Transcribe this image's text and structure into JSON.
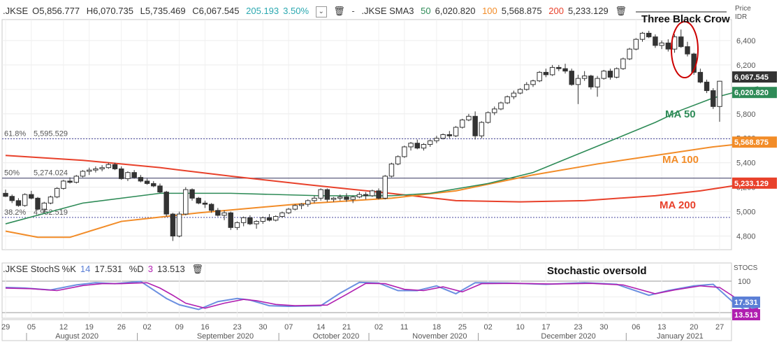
{
  "header": {
    "symbol": ".JKSE",
    "open_label": "O",
    "open": "5,856.777",
    "high_label": "H",
    "high": "6,070.735",
    "low_label": "L",
    "low": "5,735.469",
    "close_label": "C",
    "close": "6,067.545",
    "change": "205.193",
    "change_pct": "3.50%",
    "sma_label": ".JKSE SMA3",
    "sma50_label": "50",
    "sma50_value": "6,020.820",
    "sma100_label": "100",
    "sma100_value": "5,568.875",
    "sma200_label": "200",
    "sma200_value": "5,233.129"
  },
  "price_axis_title": "Price",
  "price_axis_unit": "IDR",
  "stoch_header": {
    "symbol": ".JKSE StochS",
    "k_label": "%K",
    "k_period": "14",
    "k_value": "17.531",
    "d_label": "%D",
    "d_period": "3",
    "d_value": "13.513"
  },
  "stoch_axis_title": "STOCS",
  "annotations": {
    "three_black_crow": "Three Black Crow",
    "stochastic_oversold": "Stochastic oversold",
    "ma50": "MA 50",
    "ma100": "MA 100",
    "ma200": "MA 200"
  },
  "fib_levels": [
    {
      "label": "61.8%",
      "value": "5,595.529",
      "price": 5595.529
    },
    {
      "label": "50%",
      "value": "5,274.024",
      "price": 5274.024
    },
    {
      "label": "38.2%",
      "value": "4,952.519",
      "price": 4952.519
    }
  ],
  "price_badges": [
    {
      "text": "6,067.545",
      "price": 6067.545,
      "color": "#333333"
    },
    {
      "text": "6,020.820",
      "price": 6020.82,
      "color": "#2e8b57"
    },
    {
      "text": "5,568.875",
      "price": 5568.875,
      "color": "#f28c28"
    },
    {
      "text": "5,233.129",
      "price": 5233.129,
      "color": "#e8412b"
    }
  ],
  "stoch_badges": [
    {
      "text": "17.531",
      "value": 17.531,
      "color": "#5b7fd6"
    },
    {
      "text": "13.513",
      "value": 13.513,
      "color": "#b01fb0"
    }
  ],
  "colors": {
    "up": "#ffffff",
    "down": "#333333",
    "ma50": "#2e8b57",
    "ma100": "#f28c28",
    "ma200": "#e8412b",
    "stochK": "#6b8fe0",
    "stochD": "#b01fb0",
    "annot_circle": "#cc0000",
    "change": "#2aa8b0"
  },
  "chart_data": {
    "type": "candlestick",
    "yaxis": {
      "ticks": [
        4800,
        5000,
        5200,
        5400,
        5600,
        5800,
        6000,
        6200,
        6400
      ],
      "tick_labels": [
        "4,800",
        "5,000",
        "5,200",
        "5,400",
        "5,600",
        "5,800",
        "6,000",
        "6,200",
        "6,400"
      ],
      "ylim": [
        4700,
        6560
      ]
    },
    "xaxis_days": [
      "29",
      "05",
      "12",
      "19",
      "26",
      "02",
      "09",
      "16",
      "23",
      "30",
      "07",
      "14",
      "21",
      "02",
      "11",
      "18",
      "25",
      "02",
      "10",
      "17",
      "23",
      "30",
      "06",
      "13",
      "20",
      "27"
    ],
    "xaxis_months": [
      "August 2020",
      "September 2020",
      "October 2020",
      "November 2020",
      "December 2020",
      "January 2021"
    ],
    "candles": [
      [
        5150,
        5180,
        5120,
        5125
      ],
      [
        5125,
        5140,
        5070,
        5090
      ],
      [
        5090,
        5110,
        5040,
        5050
      ],
      [
        5050,
        5150,
        5040,
        5140
      ],
      [
        5140,
        5170,
        5100,
        5110
      ],
      [
        5110,
        5120,
        5010,
        5020
      ],
      [
        5020,
        5080,
        4990,
        5070
      ],
      [
        5070,
        5130,
        5060,
        5120
      ],
      [
        5120,
        5200,
        5110,
        5190
      ],
      [
        5190,
        5260,
        5180,
        5250
      ],
      [
        5250,
        5280,
        5230,
        5240
      ],
      [
        5240,
        5300,
        5230,
        5290
      ],
      [
        5290,
        5340,
        5280,
        5330
      ],
      [
        5330,
        5360,
        5300,
        5340
      ],
      [
        5340,
        5370,
        5320,
        5350
      ],
      [
        5350,
        5380,
        5330,
        5360
      ],
      [
        5360,
        5400,
        5350,
        5385
      ],
      [
        5385,
        5400,
        5340,
        5350
      ],
      [
        5350,
        5370,
        5260,
        5270
      ],
      [
        5270,
        5330,
        5250,
        5320
      ],
      [
        5320,
        5340,
        5270,
        5280
      ],
      [
        5280,
        5300,
        5240,
        5250
      ],
      [
        5250,
        5270,
        5220,
        5230
      ],
      [
        5230,
        5250,
        5200,
        5210
      ],
      [
        5210,
        5230,
        5150,
        5160
      ],
      [
        5160,
        5170,
        4960,
        4980
      ],
      [
        4980,
        4990,
        4760,
        4800
      ],
      [
        4800,
        5000,
        4790,
        4980
      ],
      [
        4980,
        5200,
        4970,
        5180
      ],
      [
        5180,
        5190,
        5090,
        5110
      ],
      [
        5110,
        5120,
        5060,
        5070
      ],
      [
        5070,
        5090,
        5030,
        5060
      ],
      [
        5060,
        5070,
        4990,
        5010
      ],
      [
        5010,
        5030,
        4960,
        4970
      ],
      [
        4970,
        5010,
        4930,
        4990
      ],
      [
        4990,
        5000,
        4850,
        4870
      ],
      [
        4870,
        4920,
        4850,
        4910
      ],
      [
        4910,
        4960,
        4880,
        4950
      ],
      [
        4950,
        4970,
        4890,
        4900
      ],
      [
        4900,
        4930,
        4860,
        4920
      ],
      [
        4920,
        4960,
        4900,
        4950
      ],
      [
        4950,
        4980,
        4920,
        4930
      ],
      [
        4930,
        4970,
        4920,
        4960
      ],
      [
        4960,
        5000,
        4950,
        4990
      ],
      [
        4990,
        5030,
        4980,
        5020
      ],
      [
        5020,
        5060,
        5010,
        5050
      ],
      [
        5050,
        5070,
        5020,
        5060
      ],
      [
        5060,
        5100,
        5040,
        5090
      ],
      [
        5090,
        5130,
        5070,
        5110
      ],
      [
        5110,
        5190,
        5090,
        5180
      ],
      [
        5180,
        5190,
        5080,
        5100
      ],
      [
        5100,
        5120,
        5080,
        5110
      ],
      [
        5110,
        5140,
        5090,
        5120
      ],
      [
        5120,
        5150,
        5080,
        5100
      ],
      [
        5100,
        5130,
        5070,
        5120
      ],
      [
        5120,
        5160,
        5110,
        5140
      ],
      [
        5140,
        5160,
        5100,
        5130
      ],
      [
        5130,
        5180,
        5120,
        5170
      ],
      [
        5170,
        5190,
        5100,
        5110
      ],
      [
        5110,
        5300,
        5100,
        5290
      ],
      [
        5290,
        5400,
        5280,
        5390
      ],
      [
        5390,
        5460,
        5380,
        5450
      ],
      [
        5450,
        5540,
        5440,
        5530
      ],
      [
        5530,
        5570,
        5500,
        5560
      ],
      [
        5560,
        5590,
        5510,
        5520
      ],
      [
        5520,
        5560,
        5500,
        5550
      ],
      [
        5550,
        5590,
        5530,
        5580
      ],
      [
        5580,
        5620,
        5560,
        5600
      ],
      [
        5600,
        5640,
        5590,
        5630
      ],
      [
        5630,
        5660,
        5600,
        5620
      ],
      [
        5620,
        5700,
        5610,
        5690
      ],
      [
        5690,
        5760,
        5680,
        5750
      ],
      [
        5750,
        5800,
        5740,
        5780
      ],
      [
        5780,
        5820,
        5590,
        5620
      ],
      [
        5620,
        5740,
        5600,
        5730
      ],
      [
        5730,
        5820,
        5720,
        5810
      ],
      [
        5810,
        5860,
        5790,
        5840
      ],
      [
        5840,
        5900,
        5830,
        5890
      ],
      [
        5890,
        5950,
        5880,
        5940
      ],
      [
        5940,
        5990,
        5920,
        5970
      ],
      [
        5970,
        6010,
        5960,
        6000
      ],
      [
        6000,
        6060,
        5990,
        6040
      ],
      [
        6040,
        6080,
        6020,
        6070
      ],
      [
        6070,
        6150,
        6060,
        6140
      ],
      [
        6140,
        6170,
        6100,
        6120
      ],
      [
        6120,
        6200,
        6110,
        6180
      ],
      [
        6180,
        6200,
        6150,
        6170
      ],
      [
        6170,
        6210,
        6130,
        6150
      ],
      [
        6150,
        6170,
        6030,
        6040
      ],
      [
        6040,
        6120,
        5880,
        6090
      ],
      [
        6090,
        6150,
        6070,
        6110
      ],
      [
        6110,
        6120,
        6000,
        6020
      ],
      [
        6020,
        6110,
        5940,
        6090
      ],
      [
        6090,
        6160,
        6080,
        6150
      ],
      [
        6150,
        6170,
        6080,
        6100
      ],
      [
        6100,
        6180,
        6090,
        6170
      ],
      [
        6170,
        6260,
        6160,
        6250
      ],
      [
        6250,
        6340,
        6240,
        6330
      ],
      [
        6330,
        6420,
        6320,
        6410
      ],
      [
        6410,
        6470,
        6390,
        6460
      ],
      [
        6460,
        6480,
        6420,
        6430
      ],
      [
        6430,
        6450,
        6340,
        6360
      ],
      [
        6360,
        6400,
        6330,
        6380
      ],
      [
        6380,
        6410,
        6310,
        6330
      ],
      [
        6330,
        6450,
        6300,
        6430
      ],
      [
        6430,
        6490,
        6340,
        6350
      ],
      [
        6350,
        6390,
        6270,
        6290
      ],
      [
        6290,
        6300,
        6120,
        6140
      ],
      [
        6140,
        6170,
        6050,
        6060
      ],
      [
        6060,
        6080,
        5970,
        5990
      ],
      [
        5990,
        6010,
        5840,
        5860
      ],
      [
        5860,
        6070,
        5735,
        6067
      ]
    ],
    "sma50": [
      [
        0,
        4900
      ],
      [
        12,
        5070
      ],
      [
        24,
        5150
      ],
      [
        35,
        5150
      ],
      [
        49,
        5130
      ],
      [
        60,
        5130
      ],
      [
        66,
        5150
      ],
      [
        75,
        5230
      ],
      [
        82,
        5320
      ],
      [
        88,
        5450
      ],
      [
        95,
        5600
      ],
      [
        101,
        5730
      ],
      [
        105,
        5830
      ],
      [
        110,
        5930
      ],
      [
        115,
        6000
      ],
      [
        117,
        6021
      ]
    ],
    "sma100": [
      [
        0,
        4840
      ],
      [
        5,
        4790
      ],
      [
        10,
        4790
      ],
      [
        18,
        4920
      ],
      [
        30,
        4990
      ],
      [
        45,
        5060
      ],
      [
        60,
        5110
      ],
      [
        70,
        5170
      ],
      [
        82,
        5300
      ],
      [
        92,
        5390
      ],
      [
        101,
        5460
      ],
      [
        110,
        5530
      ],
      [
        117,
        5569
      ]
    ],
    "sma200": [
      [
        0,
        5460
      ],
      [
        12,
        5420
      ],
      [
        24,
        5360
      ],
      [
        35,
        5290
      ],
      [
        47,
        5220
      ],
      [
        58,
        5160
      ],
      [
        70,
        5090
      ],
      [
        80,
        5080
      ],
      [
        90,
        5090
      ],
      [
        101,
        5130
      ],
      [
        108,
        5170
      ],
      [
        113,
        5210
      ],
      [
        117,
        5233
      ]
    ],
    "stoch_k": [
      [
        0,
        80
      ],
      [
        3,
        78
      ],
      [
        7,
        72
      ],
      [
        11,
        88
      ],
      [
        14,
        95
      ],
      [
        17,
        92
      ],
      [
        21,
        99
      ],
      [
        23,
        72
      ],
      [
        25,
        45
      ],
      [
        27,
        25
      ],
      [
        30,
        10
      ],
      [
        33,
        35
      ],
      [
        36,
        45
      ],
      [
        38,
        40
      ],
      [
        41,
        22
      ],
      [
        44,
        20
      ],
      [
        49,
        22
      ],
      [
        52,
        62
      ],
      [
        55,
        96
      ],
      [
        58,
        94
      ],
      [
        61,
        70
      ],
      [
        64,
        70
      ],
      [
        67,
        85
      ],
      [
        70,
        60
      ],
      [
        73,
        95
      ],
      [
        78,
        94
      ],
      [
        84,
        90
      ],
      [
        90,
        95
      ],
      [
        95,
        90
      ],
      [
        100,
        55
      ],
      [
        103,
        70
      ],
      [
        107,
        85
      ],
      [
        110,
        90
      ],
      [
        113,
        35
      ],
      [
        115,
        8
      ],
      [
        117,
        17.531
      ]
    ],
    "stoch_d": [
      [
        0,
        78
      ],
      [
        4,
        76
      ],
      [
        8,
        70
      ],
      [
        12,
        86
      ],
      [
        15,
        92
      ],
      [
        18,
        92
      ],
      [
        22,
        95
      ],
      [
        24,
        78
      ],
      [
        26,
        55
      ],
      [
        28,
        30
      ],
      [
        31,
        14
      ],
      [
        34,
        30
      ],
      [
        37,
        42
      ],
      [
        39,
        38
      ],
      [
        42,
        26
      ],
      [
        45,
        22
      ],
      [
        50,
        24
      ],
      [
        53,
        58
      ],
      [
        56,
        93
      ],
      [
        59,
        92
      ],
      [
        62,
        74
      ],
      [
        65,
        70
      ],
      [
        68,
        82
      ],
      [
        71,
        66
      ],
      [
        74,
        92
      ],
      [
        79,
        93
      ],
      [
        85,
        91
      ],
      [
        91,
        93
      ],
      [
        96,
        88
      ],
      [
        101,
        60
      ],
      [
        104,
        72
      ],
      [
        108,
        85
      ],
      [
        111,
        80
      ],
      [
        114,
        40
      ],
      [
        116,
        10
      ],
      [
        117,
        13.513
      ]
    ],
    "stoch_ticks": [
      0,
      50,
      100
    ],
    "stoch_tick_labels": [
      "0",
      "50",
      "100"
    ]
  }
}
